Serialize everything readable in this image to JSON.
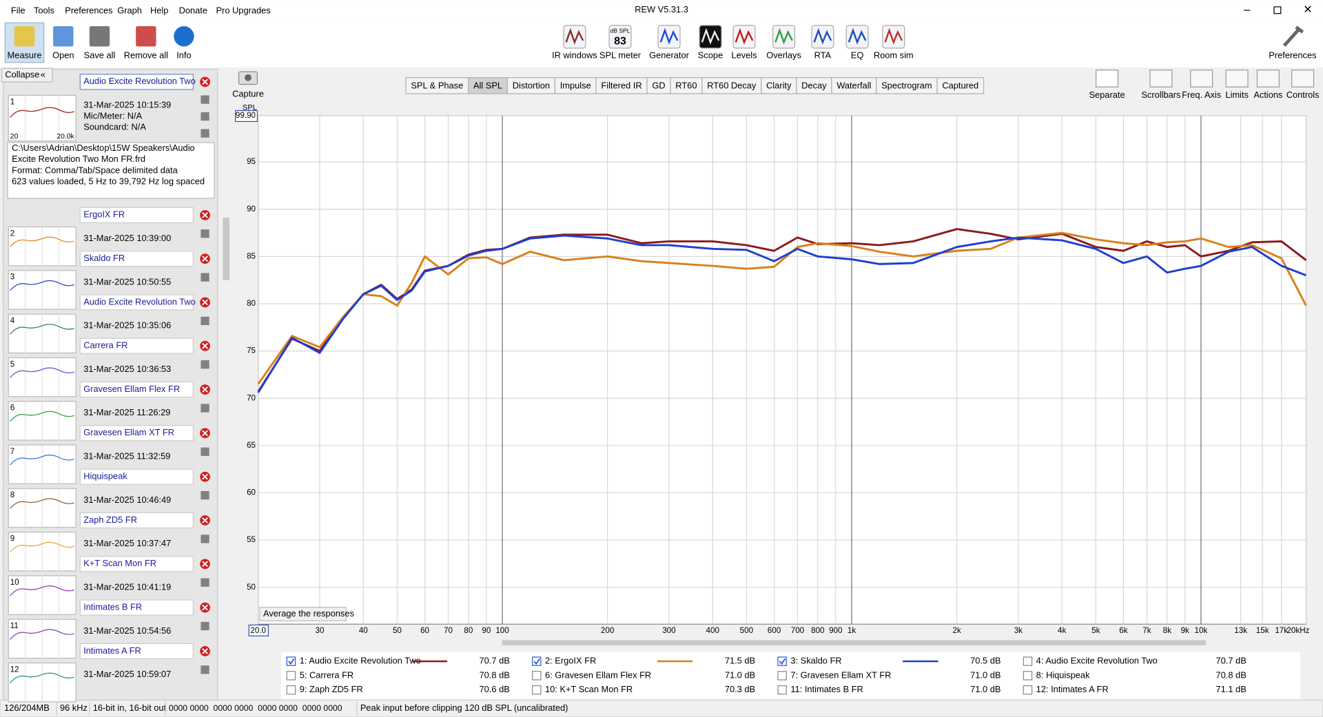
{
  "window": {
    "title": "REW V5.31.3",
    "menu": [
      "File",
      "Tools",
      "Preferences",
      "Graph",
      "Help",
      "Donate",
      "Pro Upgrades"
    ]
  },
  "toolbar": {
    "left": [
      "Measure",
      "Open",
      "Save all",
      "Remove all",
      "Info"
    ],
    "center": [
      "IR windows",
      "SPL meter",
      "Generator",
      "Scope",
      "Levels",
      "Overlays",
      "RTA",
      "EQ",
      "Room sim"
    ],
    "spl_icon": [
      "dB SPL",
      "83"
    ],
    "right": "Preferences"
  },
  "collapse": "Collapse",
  "capture": "Capture",
  "tabs": [
    "SPL & Phase",
    "All SPL",
    "Distortion",
    "Impulse",
    "Filtered IR",
    "GD",
    "RT60",
    "RT60 Decay",
    "Clarity",
    "Decay",
    "Waterfall",
    "Spectrogram",
    "Captured"
  ],
  "selected_tab": 1,
  "graph_controls": [
    "Separate",
    "Scrollbars",
    "Freq. Axis",
    "Limits",
    "Actions",
    "Controls"
  ],
  "average_button": "Average the responses",
  "measurements": [
    {
      "number": 1,
      "name": "Audio Excite Revolution Two",
      "date": "31-Mar-2025 10:15:39",
      "color": "#a01818"
    },
    {
      "number": 2,
      "name": "ErgoIX FR",
      "date": "31-Mar-2025 10:39:00",
      "color": "#e08a20"
    },
    {
      "number": 3,
      "name": "Skaldo FR",
      "date": "31-Mar-2025 10:50:55",
      "color": "#2040d0"
    },
    {
      "number": 4,
      "name": "Audio Excite Revolution Two",
      "date": "31-Mar-2025 10:35:06",
      "color": "#2a7a4a"
    },
    {
      "number": 5,
      "name": "Carrera FR",
      "date": "31-Mar-2025 10:36:53",
      "color": "#5a4fcf"
    },
    {
      "number": 6,
      "name": "Gravesen Ellam Flex FR",
      "date": "31-Mar-2025 11:26:29",
      "color": "#30a030"
    },
    {
      "number": 7,
      "name": "Gravesen Ellam XT FR",
      "date": "31-Mar-2025 11:32:59",
      "color": "#3070d0"
    },
    {
      "number": 8,
      "name": "Hiquispeak",
      "date": "31-Mar-2025 10:46:49",
      "color": "#8b5a2b"
    },
    {
      "number": 9,
      "name": "Zaph ZD5 FR",
      "date": "31-Mar-2025 10:37:47",
      "color": "#e8a030"
    },
    {
      "number": 10,
      "name": "K+T Scan Mon FR",
      "date": "31-Mar-2025 10:41:19",
      "color": "#a030c0"
    },
    {
      "number": 11,
      "name": "Intimates B FR",
      "date": "31-Mar-2025 10:54:56",
      "color": "#7b3fb0"
    },
    {
      "number": 12,
      "name": "Intimates A FR",
      "date": "31-Mar-2025 10:59:07",
      "color": "#2a8a8a"
    }
  ],
  "details": {
    "mic": "Mic/Meter: N/A",
    "soundcard": "Soundcard: N/A",
    "thumb_labels": [
      "20",
      "20.0k"
    ],
    "file_info": [
      "C:\\Users\\Adrian\\Desktop\\15W Speakers\\Audio",
      "Excite Revolution Two Mon FR.frd",
      "Format: Comma/Tab/Space delimited data",
      "623 values loaded, 5 Hz to 39,792 Hz log spaced"
    ]
  },
  "status_bar": [
    "126/204MB",
    "96 kHz",
    "16-bit in, 16-bit out",
    "0000 0000  0000 0000  0000 0000  0000 0000",
    "Peak input before clipping 120 dB SPL (uncalibrated)"
  ],
  "chart_data": {
    "type": "line",
    "y_label": "SPL",
    "x_scale": "log",
    "grid": true,
    "xlim": [
      20,
      20000
    ],
    "ylim": [
      46.1,
      99.9
    ],
    "yticks": [
      50,
      55,
      60,
      65,
      70,
      75,
      80,
      85,
      90,
      95,
      {
        "value": 99.9,
        "label": "99.90"
      }
    ],
    "xticks": [
      {
        "value": 20,
        "label": "20.0"
      },
      30,
      40,
      50,
      60,
      70,
      80,
      90,
      100,
      200,
      300,
      400,
      500,
      600,
      700,
      800,
      900,
      {
        "value": 1000,
        "label": "1k"
      },
      {
        "value": 2000,
        "label": "2k"
      },
      {
        "value": 3000,
        "label": "3k"
      },
      {
        "value": 4000,
        "label": "4k"
      },
      {
        "value": 5000,
        "label": "5k"
      },
      {
        "value": 6000,
        "label": "6k"
      },
      {
        "value": 7000,
        "label": "7k"
      },
      {
        "value": 8000,
        "label": "8k"
      },
      {
        "value": 9000,
        "label": "9k"
      },
      {
        "value": 10000,
        "label": "10k"
      },
      {
        "value": 13000,
        "label": "13k"
      },
      {
        "value": 15000,
        "label": "15k"
      },
      {
        "value": 17000,
        "label": "17k"
      },
      {
        "value": 20000,
        "label": "20kHz"
      }
    ],
    "x": [
      20,
      25,
      30,
      35,
      40,
      45,
      50,
      55,
      60,
      70,
      80,
      90,
      100,
      120,
      150,
      200,
      250,
      300,
      400,
      500,
      600,
      700,
      800,
      1000,
      1200,
      1500,
      2000,
      2500,
      3000,
      4000,
      5000,
      6000,
      7000,
      8000,
      9000,
      10000,
      12000,
      14000,
      17000,
      20000
    ],
    "series": [
      {
        "name": "1: Audio Excite Revolution Two",
        "color": "#8b1a1a",
        "level": "70.7 dB",
        "values": [
          70.7,
          76.3,
          75.0,
          78.5,
          81.0,
          82.0,
          80.5,
          81.5,
          83.5,
          84.0,
          85.2,
          85.7,
          85.8,
          87.0,
          87.3,
          87.3,
          86.4,
          86.6,
          86.6,
          86.2,
          85.6,
          87.0,
          86.3,
          86.4,
          86.2,
          86.6,
          87.9,
          87.4,
          86.8,
          87.4,
          86.0,
          85.6,
          86.6,
          86.0,
          86.2,
          85.0,
          85.6,
          86.5,
          86.6,
          84.6
        ]
      },
      {
        "name": "2: ErgoIX FR",
        "color": "#d9801a",
        "level": "71.5 dB",
        "values": [
          71.5,
          76.6,
          75.4,
          78.6,
          81.0,
          80.8,
          79.8,
          82.2,
          85.0,
          83.1,
          84.8,
          84.9,
          84.2,
          85.5,
          84.6,
          85.0,
          84.5,
          84.3,
          84.0,
          83.7,
          83.9,
          86.0,
          86.4,
          86.1,
          85.5,
          85.0,
          85.6,
          85.8,
          87.0,
          87.5,
          86.8,
          86.4,
          86.2,
          86.5,
          86.6,
          86.9,
          86.0,
          86.2,
          84.8,
          79.8
        ]
      },
      {
        "name": "3: Skaldo FR",
        "color": "#1f3fcf",
        "level": "70.5 dB",
        "values": [
          70.6,
          76.4,
          74.8,
          78.4,
          81.0,
          81.9,
          80.4,
          81.4,
          83.4,
          84.0,
          85.1,
          85.6,
          85.8,
          86.9,
          87.2,
          86.9,
          86.2,
          86.2,
          85.8,
          85.7,
          84.5,
          85.8,
          85.0,
          84.7,
          84.2,
          84.3,
          86.0,
          86.6,
          87.0,
          86.7,
          85.8,
          84.3,
          85.0,
          83.3,
          83.7,
          84.0,
          85.5,
          86.0,
          84.0,
          83.0
        ]
      }
    ],
    "legend_extra": [
      {
        "name": "4: Audio Excite Revolution Two",
        "color": "#2a50c0",
        "level": "70.7 dB"
      },
      {
        "name": "5: Carrera FR",
        "color": "#4a3fb0",
        "level": "70.8 dB"
      },
      {
        "name": "6: Gravesen Ellam Flex FR",
        "color": "#2e8b3a",
        "level": "71.0 dB"
      },
      {
        "name": "7: Gravesen Ellam XT FR",
        "color": "#2a3fa0",
        "level": "71.0 dB"
      },
      {
        "name": "8: Hiquispeak",
        "color": "#8b5a2b",
        "level": "70.8 dB"
      },
      {
        "name": "9: Zaph ZD5 FR",
        "color": "#e0a030",
        "level": "70.6 dB"
      },
      {
        "name": "10: K+T Scan Mon FR",
        "color": "#8a2be2",
        "level": "70.3 dB"
      },
      {
        "name": "11: Intimates B FR",
        "color": "#7b3fa0",
        "level": "71.0 dB"
      },
      {
        "name": "12: Intimates A FR",
        "color": "#2a8a8a",
        "level": "71.1 dB"
      }
    ]
  }
}
